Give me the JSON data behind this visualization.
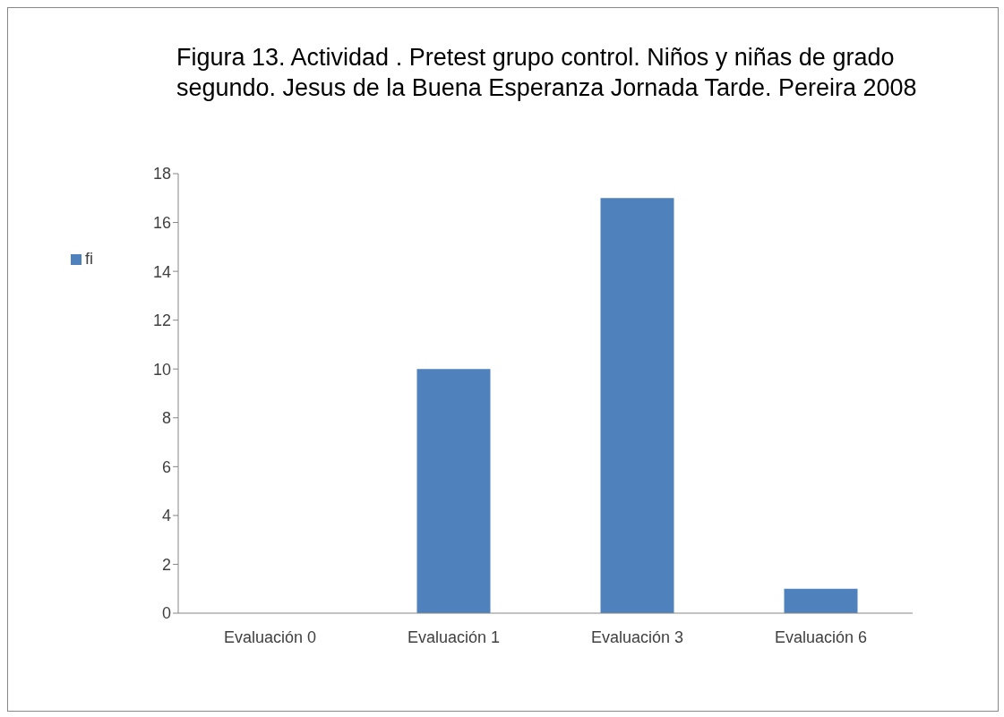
{
  "chart_data": {
    "type": "bar",
    "title": "Figura 13. Actividad . Pretest grupo control. Niños y niñas de grado segundo. Jesus de la Buena Esperanza Jornada Tarde. Pereira 2008",
    "categories": [
      "Evaluación 0",
      "Evaluación 1",
      "Evaluación 3",
      "Evaluación 6"
    ],
    "series": [
      {
        "name": "fi",
        "color": "#4f81bd",
        "values": [
          0,
          10,
          17,
          1
        ]
      }
    ],
    "ylim": [
      0,
      18
    ],
    "yticks": [
      0,
      2,
      4,
      6,
      8,
      10,
      12,
      14,
      16,
      18
    ],
    "legend": "left"
  }
}
